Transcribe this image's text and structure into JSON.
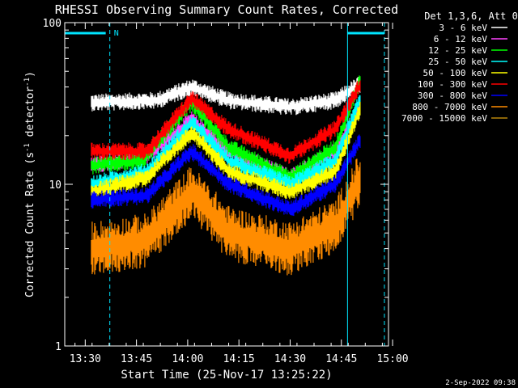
{
  "chart_data": {
    "type": "line",
    "title": "RHESSI Observing Summary Count Rates, Corrected",
    "xlabel": "Start Time (25-Nov-17 13:25:22)",
    "ylabel": "Corrected Count Rate (s",
    "ylabel_sup": "-1",
    "ylabel_mid": " detector",
    "ylabel_end": ")",
    "footer_date": "2-Sep-2022 09:38",
    "yscale": "log",
    "ylim": [
      1,
      100
    ],
    "xlim_minutes": [
      13.4,
      14.98
    ],
    "y_ticks": [
      {
        "v": 1,
        "label": "1"
      },
      {
        "v": 10,
        "label": "10"
      },
      {
        "v": 100,
        "label": "100"
      }
    ],
    "x_ticks": [
      {
        "v": 13.5,
        "label": "13:30"
      },
      {
        "v": 13.75,
        "label": "13:45"
      },
      {
        "v": 14.0,
        "label": "14:00"
      },
      {
        "v": 14.25,
        "label": "14:15"
      },
      {
        "v": 14.5,
        "label": "14:30"
      },
      {
        "v": 14.75,
        "label": "14:45"
      },
      {
        "v": 15.0,
        "label": "15:00"
      }
    ],
    "legend_header": "Det 1,3,6, Att 0",
    "legend_position": "top-right",
    "annotation": {
      "label": "N",
      "x": 13.64
    },
    "markers": {
      "solid": [
        13.4,
        14.78
      ],
      "dashed": [
        13.62,
        14.96
      ],
      "bars": [
        [
          13.4,
          13.6
        ],
        [
          14.78,
          14.96
        ]
      ]
    },
    "data_x_range": [
      13.53,
      14.845
    ],
    "series": [
      {
        "name": "3 - 6 keV",
        "color": "#ffffff",
        "keyframes": [
          [
            13.53,
            32
          ],
          [
            13.85,
            33
          ],
          [
            14.02,
            40
          ],
          [
            14.2,
            33
          ],
          [
            14.5,
            30
          ],
          [
            14.72,
            33
          ],
          [
            14.845,
            42
          ]
        ]
      },
      {
        "name": "6 - 12 keV",
        "color": "#ff44ff",
        "keyframes": [
          [
            13.53,
            13
          ],
          [
            13.8,
            15
          ],
          [
            14.02,
            25
          ],
          [
            14.2,
            16
          ],
          [
            14.5,
            11
          ],
          [
            14.72,
            16
          ],
          [
            14.845,
            30
          ]
        ]
      },
      {
        "name": "12 - 25 keV",
        "color": "#00ff00",
        "keyframes": [
          [
            13.53,
            13
          ],
          [
            13.78,
            14
          ],
          [
            14.02,
            32
          ],
          [
            14.2,
            17
          ],
          [
            14.5,
            11
          ],
          [
            14.72,
            17
          ],
          [
            14.845,
            45
          ]
        ]
      },
      {
        "name": "25 - 50 keV",
        "color": "#00ffff",
        "keyframes": [
          [
            13.53,
            10
          ],
          [
            13.8,
            12
          ],
          [
            14.02,
            24
          ],
          [
            14.2,
            14
          ],
          [
            14.5,
            10
          ],
          [
            14.72,
            14
          ],
          [
            14.845,
            34
          ]
        ]
      },
      {
        "name": "50 - 100 keV",
        "color": "#ffff00",
        "keyframes": [
          [
            13.53,
            9
          ],
          [
            13.8,
            11
          ],
          [
            14.02,
            21
          ],
          [
            14.2,
            12
          ],
          [
            14.5,
            9
          ],
          [
            14.72,
            12
          ],
          [
            14.845,
            30
          ]
        ]
      },
      {
        "name": "100 - 300 keV",
        "color": "#ff0000",
        "keyframes": [
          [
            13.53,
            16
          ],
          [
            13.8,
            16
          ],
          [
            14.02,
            34
          ],
          [
            14.2,
            22
          ],
          [
            14.5,
            15
          ],
          [
            14.72,
            22
          ],
          [
            14.845,
            42
          ]
        ]
      },
      {
        "name": "300 - 800 keV",
        "color": "#0000ff",
        "keyframes": [
          [
            13.53,
            8
          ],
          [
            13.8,
            8.5
          ],
          [
            14.02,
            16
          ],
          [
            14.2,
            10
          ],
          [
            14.5,
            7
          ],
          [
            14.72,
            10
          ],
          [
            14.845,
            19
          ]
        ]
      },
      {
        "name": "800 - 7000 keV",
        "color": "#ff8c00",
        "keyframes": [
          [
            13.53,
            4
          ],
          [
            13.8,
            4.5
          ],
          [
            14.02,
            9
          ],
          [
            14.2,
            5
          ],
          [
            14.5,
            4
          ],
          [
            14.72,
            5.5
          ],
          [
            14.845,
            11
          ]
        ]
      },
      {
        "name": "7000 - 15000 keV",
        "color": "#b8860b",
        "keyframes": []
      }
    ]
  }
}
